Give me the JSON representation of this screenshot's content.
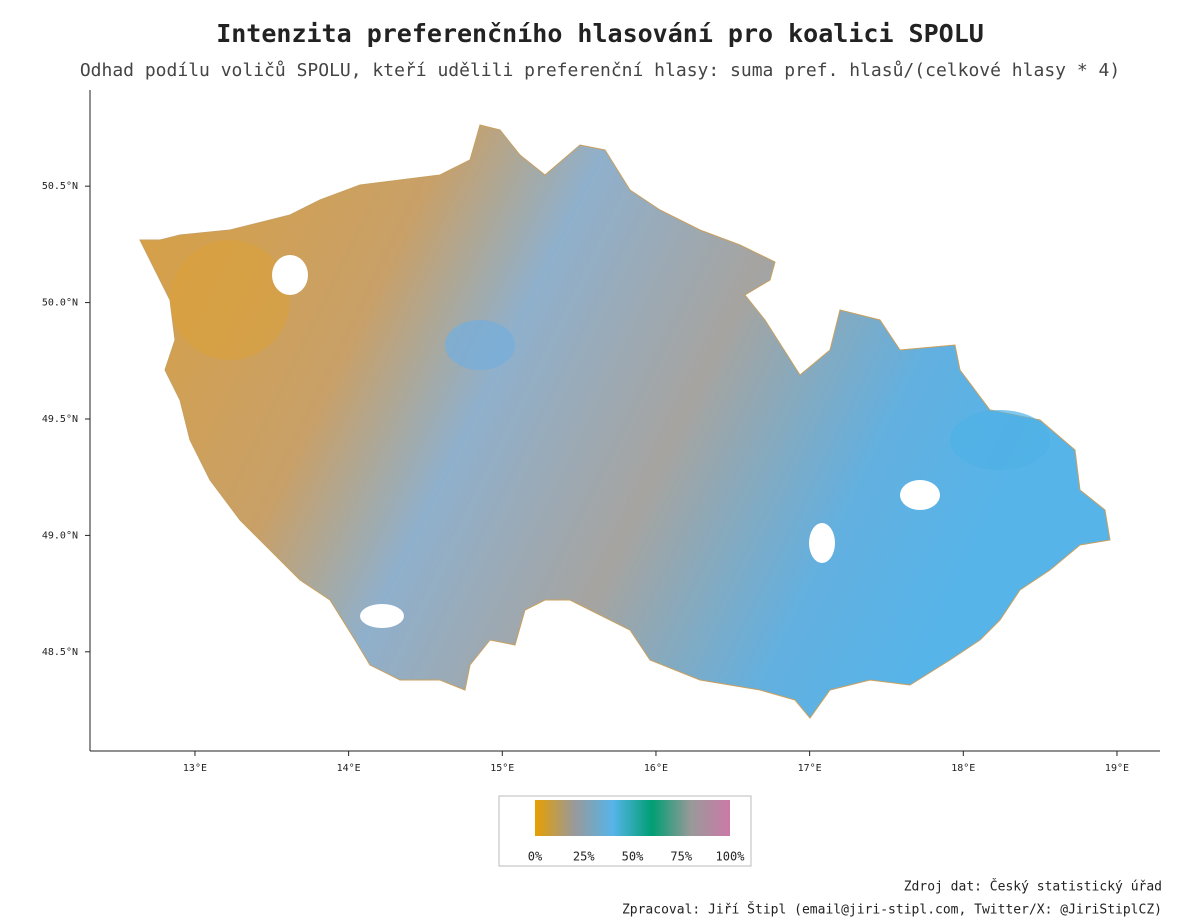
{
  "chart_data": {
    "type": "choropleth",
    "title": "Intenzita preferenčního hlasování pro koalici SPOLU",
    "subtitle": "Odhad podílu voličů SPOLU, kteří udělili preferenční hlasy: suma pref. hlasů/(celkové hlasy * 4)",
    "xlim": [
      12.317,
      19.28
    ],
    "ylim": [
      48.074,
      50.913
    ],
    "xticks": [
      {
        "value": 13,
        "label": "13°E"
      },
      {
        "value": 14,
        "label": "14°E"
      },
      {
        "value": 15,
        "label": "15°E"
      },
      {
        "value": 16,
        "label": "16°E"
      },
      {
        "value": 17,
        "label": "17°E"
      },
      {
        "value": 18,
        "label": "18°E"
      },
      {
        "value": 19,
        "label": "19°E"
      }
    ],
    "yticks": [
      {
        "value": 48.5,
        "label": "48.5°N"
      },
      {
        "value": 49,
        "label": "49.0°N"
      },
      {
        "value": 49.5,
        "label": "49.5°N"
      },
      {
        "value": 50,
        "label": "50.0°N"
      },
      {
        "value": 50.5,
        "label": "50.5°N"
      }
    ],
    "colorbar": {
      "lim": [
        0,
        100
      ],
      "colors": [
        "#E69F00",
        "#999999",
        "#56B4E9",
        "#009E73",
        "#999999",
        "#CC79A7"
      ],
      "ticks": [
        {
          "value": 0,
          "label": "0%"
        },
        {
          "value": 25,
          "label": "25%"
        },
        {
          "value": 50,
          "label": "50%"
        },
        {
          "value": 75,
          "label": "75%"
        },
        {
          "value": 100,
          "label": "100%"
        }
      ]
    },
    "source": "Zdroj dat: Český statistický úřad",
    "credit": "Zpracoval: Jiří Štipl (email@jiri-stipl.com, Twitter/X: @JiriStiplCZ)"
  }
}
